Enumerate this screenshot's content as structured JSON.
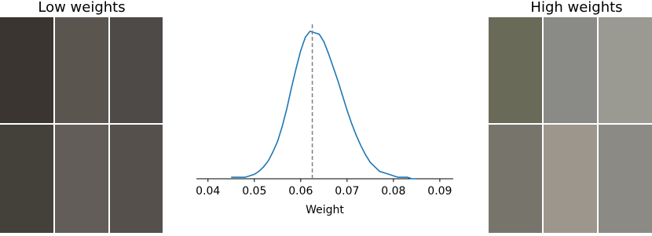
{
  "panels": {
    "left_title": "Low weights",
    "right_title": "High weights"
  },
  "chart_data": {
    "type": "line",
    "xlabel": "Weight",
    "x": [
      0.045,
      0.046,
      0.047,
      0.048,
      0.049,
      0.05,
      0.051,
      0.052,
      0.053,
      0.054,
      0.055,
      0.056,
      0.057,
      0.058,
      0.059,
      0.06,
      0.061,
      0.062,
      0.063,
      0.064,
      0.065,
      0.066,
      0.067,
      0.068,
      0.069,
      0.07,
      0.071,
      0.072,
      0.073,
      0.074,
      0.075,
      0.076,
      0.077,
      0.078,
      0.079,
      0.08,
      0.081,
      0.082,
      0.083,
      0.084,
      0.085
    ],
    "values": [
      0.01,
      0.01,
      0.01,
      0.01,
      0.02,
      0.03,
      0.05,
      0.08,
      0.12,
      0.18,
      0.25,
      0.35,
      0.47,
      0.61,
      0.74,
      0.86,
      0.95,
      0.99,
      0.98,
      0.97,
      0.92,
      0.84,
      0.75,
      0.66,
      0.56,
      0.46,
      0.37,
      0.29,
      0.22,
      0.16,
      0.11,
      0.08,
      0.05,
      0.04,
      0.03,
      0.02,
      0.01,
      0.01,
      0.01,
      0,
      0
    ],
    "color": "#1f77b4",
    "reference_line": 0.0625,
    "reference_color": "#808080",
    "xlim": [
      0.0375,
      0.0929
    ],
    "ylim": [
      0,
      1
    ],
    "xticks": [
      0.04,
      0.05,
      0.06,
      0.07,
      0.08,
      0.09
    ]
  }
}
